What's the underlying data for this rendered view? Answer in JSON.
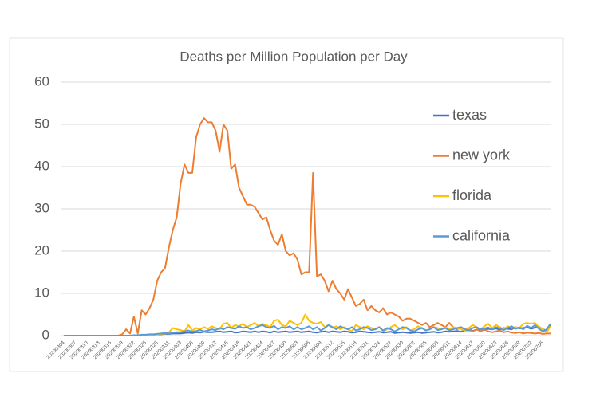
{
  "chart_data": {
    "type": "line",
    "title": "Deaths per Million Population per Day",
    "categories": [
      "20200304",
      null,
      null,
      "20200307",
      null,
      null,
      "20200310",
      null,
      null,
      "20200313",
      null,
      null,
      "20200316",
      null,
      null,
      "20200319",
      null,
      null,
      "20200322",
      null,
      null,
      "20200325",
      null,
      null,
      "20200328",
      null,
      null,
      "20200331",
      null,
      null,
      "20200403",
      null,
      null,
      "20200406",
      null,
      null,
      "20200409",
      null,
      null,
      "20200412",
      null,
      null,
      "20200415",
      null,
      null,
      "20200418",
      null,
      null,
      "20200421",
      null,
      null,
      "20200424",
      null,
      null,
      "20200427",
      null,
      null,
      "20200430",
      null,
      null,
      "20200503",
      null,
      null,
      "20200506",
      null,
      null,
      "20200509",
      null,
      null,
      "20200512",
      null,
      null,
      "20200515",
      null,
      null,
      "20200518",
      null,
      null,
      "20200521",
      null,
      null,
      "20200524",
      null,
      null,
      "20200527",
      null,
      null,
      "20200530",
      null,
      null,
      "20200602",
      null,
      null,
      "20200605",
      null,
      null,
      "20200608",
      null,
      null,
      "20200611",
      null,
      null,
      "20200614",
      null,
      null,
      "20200617",
      null,
      null,
      "20200620",
      null,
      null,
      "20200623",
      null,
      null,
      "20200626",
      null,
      null,
      "20200629",
      null,
      null,
      "20200702",
      null,
      null,
      "20200705",
      null,
      null
    ],
    "series": [
      {
        "name": "texas",
        "color": "#4472c4",
        "values": [
          0,
          0,
          0,
          0,
          0,
          0,
          0,
          0,
          0,
          0,
          0,
          0,
          0,
          0,
          0,
          0,
          0,
          0,
          0,
          0,
          0.1,
          0.1,
          0.2,
          0.2,
          0.3,
          0.3,
          0.4,
          0.4,
          0.5,
          0.5,
          0.5,
          0.6,
          0.7,
          0.6,
          0.8,
          0.7,
          0.9,
          0.8,
          0.8,
          0.9,
          1,
          0.8,
          0.9,
          1,
          0.7,
          0.8,
          1,
          0.9,
          0.8,
          1,
          0.8,
          1,
          0.9,
          0.7,
          1,
          0.8,
          0.9,
          1,
          0.8,
          0.9,
          1,
          0.8,
          0.9,
          1,
          0.8,
          0.7,
          0.9,
          1,
          0.8,
          1,
          0.9,
          0.8,
          1,
          0.9,
          0.7,
          0.8,
          1,
          0.9,
          0.8,
          0.7,
          0.8,
          0.9,
          0.7,
          0.8,
          0.9,
          0.6,
          0.7,
          0.8,
          0.7,
          0.6,
          0.7,
          0.8,
          0.6,
          0.7,
          0.8,
          0.9,
          0.7,
          0.8,
          1,
          0.9,
          1,
          1.1,
          0.9,
          1.2,
          1.3,
          1.1,
          1.4,
          1.5,
          1.3,
          1.6,
          1.5,
          1.7,
          1.4,
          1.8,
          1.6,
          1.5,
          1.9,
          1.7,
          1.8,
          2,
          1.6,
          1.9,
          2.1,
          1.5,
          1.2,
          2.5
        ]
      },
      {
        "name": "new york",
        "color": "#ed7d31",
        "values": [
          0,
          0,
          0,
          0,
          0,
          0,
          0,
          0,
          0,
          0,
          0,
          0,
          0,
          0,
          0,
          0.3,
          1.5,
          0.5,
          4.5,
          0.5,
          6,
          5,
          6.5,
          8.5,
          13,
          15,
          16,
          21,
          25,
          28,
          36,
          40.5,
          38.5,
          38.5,
          47,
          50,
          51.5,
          50.5,
          50.5,
          48.5,
          43.5,
          50,
          48.5,
          39.5,
          40.5,
          35,
          33,
          31,
          31,
          30.5,
          29,
          27.5,
          28,
          25,
          22.5,
          21.5,
          24,
          20,
          19,
          19.5,
          18,
          14.5,
          15,
          15,
          38.5,
          14,
          14.5,
          13,
          10.5,
          13,
          11,
          10,
          8.5,
          11,
          9,
          7,
          7.5,
          8.5,
          6,
          7,
          6,
          5.5,
          6.5,
          5,
          5.5,
          5,
          4.5,
          3.5,
          4,
          4,
          3.5,
          3,
          2.5,
          3,
          2,
          2.5,
          3,
          2.5,
          2,
          3,
          2,
          1.5,
          2,
          1.5,
          1.5,
          1,
          1.5,
          1,
          1.5,
          1,
          0.8,
          1,
          1.2,
          0.8,
          1,
          0.7,
          0.6,
          0.8,
          0.5,
          0.7,
          0.6,
          0.5,
          0.6,
          0.4,
          0.5,
          0.5
        ]
      },
      {
        "name": "florida",
        "color": "#ffc000",
        "values": [
          0,
          0,
          0,
          0,
          0,
          0,
          0,
          0,
          0,
          0,
          0,
          0,
          0,
          0,
          0,
          0,
          0,
          0,
          0,
          0,
          0,
          0,
          0.1,
          0.2,
          0.3,
          0.4,
          0.5,
          0.8,
          1.8,
          1.5,
          1.3,
          1,
          2.5,
          1.2,
          1.8,
          1.5,
          2,
          1.6,
          2.2,
          1.8,
          1.5,
          2.8,
          3,
          1.8,
          2.5,
          2.2,
          2.8,
          2,
          2.5,
          3,
          2.2,
          2.8,
          2.5,
          2,
          3.5,
          3.8,
          2.5,
          2.2,
          3.5,
          3,
          2.5,
          3,
          5,
          3.5,
          3,
          2.8,
          3.2,
          2,
          2.5,
          1.8,
          2.2,
          1.5,
          2,
          1.5,
          1,
          2.5,
          2,
          1.5,
          2.2,
          1.8,
          1.5,
          2,
          1,
          1.5,
          2,
          2.5,
          1.8,
          1.5,
          2,
          1.2,
          1.5,
          2.2,
          1.8,
          1.2,
          1.5,
          2,
          1.8,
          1.5,
          2,
          1.5,
          2,
          1.8,
          1.5,
          1.2,
          1.8,
          2.5,
          2,
          1.5,
          2.2,
          2.8,
          1.8,
          2.5,
          2,
          1.5,
          2.2,
          1.8,
          2,
          1.8,
          2.8,
          3,
          2.8,
          3,
          2,
          1.5,
          0.8,
          2.2
        ]
      },
      {
        "name": "california",
        "color": "#5b9bd5",
        "values": [
          0,
          0,
          0,
          0,
          0,
          0,
          0,
          0,
          0,
          0,
          0,
          0,
          0,
          0,
          0,
          0,
          0,
          0,
          0.1,
          0.1,
          0.2,
          0.2,
          0.3,
          0.3,
          0.4,
          0.5,
          0.6,
          0.5,
          0.7,
          0.8,
          0.8,
          1,
          1.2,
          0.9,
          1.1,
          1.3,
          1,
          1.2,
          1.5,
          1.3,
          1.8,
          1.5,
          2,
          1.8,
          1.6,
          2.2,
          1.8,
          2,
          1.5,
          1.8,
          2.2,
          2.5,
          2,
          1.8,
          2.3,
          1.5,
          2,
          1.8,
          2.2,
          1.5,
          2,
          1.5,
          1.8,
          2.2,
          1.5,
          2,
          1.2,
          1.8,
          2.5,
          2,
          1.5,
          2.2,
          1.8,
          1.5,
          2,
          1.2,
          1.5,
          2,
          1.8,
          1.3,
          1.5,
          2,
          1.2,
          1.8,
          1.5,
          1,
          1.5,
          2,
          1.8,
          1.2,
          1,
          1.5,
          1.8,
          1.2,
          1.5,
          2,
          1.3,
          1.5,
          1.8,
          1.2,
          1.5,
          1.8,
          2,
          1.5,
          1.2,
          1.8,
          2,
          1.5,
          1.7,
          1.9,
          1.5,
          2,
          1.7,
          1.3,
          1.8,
          2.2,
          1.6,
          1.9,
          1.5,
          2.3,
          1.8,
          2.5,
          1.6,
          1,
          1.5,
          2.8
        ]
      }
    ],
    "ylim": [
      0,
      60
    ],
    "yticks": [
      0,
      10,
      20,
      30,
      40,
      50,
      60
    ],
    "grid": true,
    "legend": "right"
  }
}
